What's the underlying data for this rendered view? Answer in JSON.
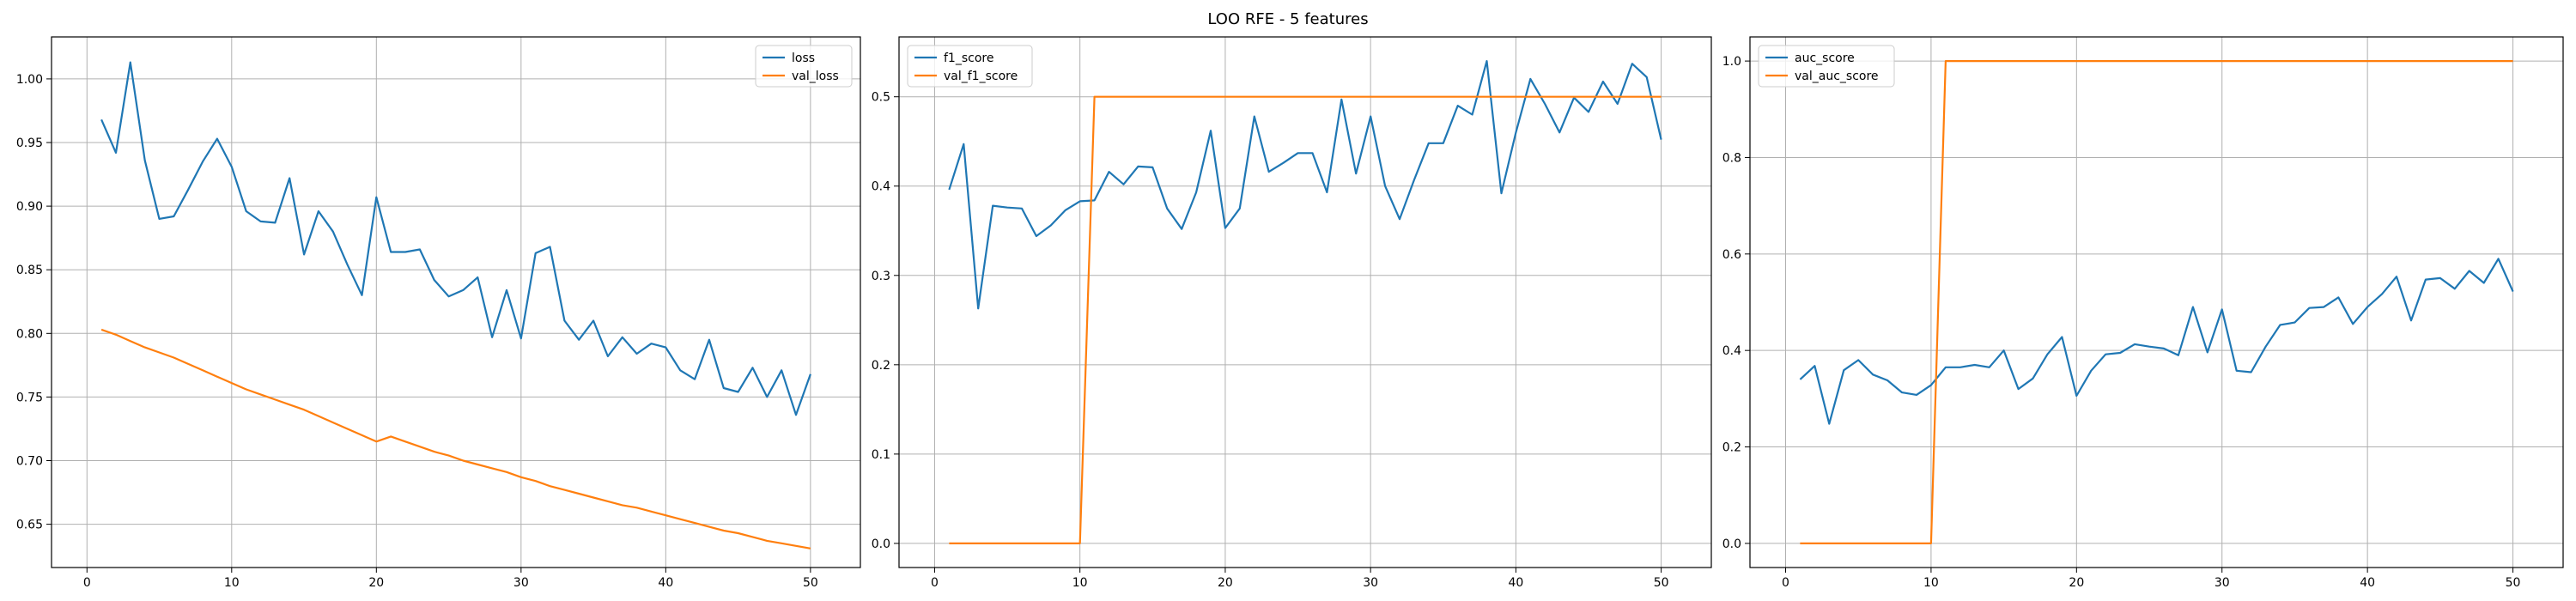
{
  "figure": {
    "title": "LOO RFE - 5 features"
  },
  "chart_data": [
    {
      "type": "line",
      "title": "",
      "xlabel": "",
      "ylabel": "",
      "xlim": [
        -2.45,
        53.45
      ],
      "ylim": [
        0.616,
        1.033
      ],
      "xticks": [
        0,
        10,
        20,
        30,
        40,
        50
      ],
      "yticks": [
        0.65,
        0.7,
        0.75,
        0.8,
        0.85,
        0.9,
        0.95,
        1.0
      ],
      "ytick_labels": [
        "0.65",
        "0.70",
        "0.75",
        "0.80",
        "0.85",
        "0.90",
        "0.95",
        "1.00"
      ],
      "grid": true,
      "legend_position": "upper right",
      "x": [
        1,
        2,
        3,
        4,
        5,
        6,
        7,
        8,
        9,
        10,
        11,
        12,
        13,
        14,
        15,
        16,
        17,
        18,
        19,
        20,
        21,
        22,
        23,
        24,
        25,
        26,
        27,
        28,
        29,
        30,
        31,
        32,
        33,
        34,
        35,
        36,
        37,
        38,
        39,
        40,
        41,
        42,
        43,
        44,
        45,
        46,
        47,
        48,
        49,
        50
      ],
      "series": [
        {
          "name": "loss",
          "color": "#1f77b4",
          "values": [
            0.968,
            0.942,
            1.013,
            0.936,
            0.89,
            0.892,
            0.913,
            0.935,
            0.953,
            0.931,
            0.896,
            0.888,
            0.887,
            0.922,
            0.862,
            0.896,
            0.88,
            0.854,
            0.83,
            0.907,
            0.864,
            0.864,
            0.866,
            0.842,
            0.829,
            0.834,
            0.844,
            0.797,
            0.834,
            0.796,
            0.863,
            0.868,
            0.81,
            0.795,
            0.81,
            0.782,
            0.797,
            0.784,
            0.792,
            0.789,
            0.771,
            0.764,
            0.795,
            0.757,
            0.754,
            0.773,
            0.75,
            0.771,
            0.736,
            0.768
          ]
        },
        {
          "name": "val_loss",
          "color": "#ff7f0e",
          "values": [
            0.803,
            0.799,
            0.794,
            0.789,
            0.785,
            0.781,
            0.776,
            0.771,
            0.766,
            0.761,
            0.756,
            0.752,
            0.748,
            0.744,
            0.74,
            0.735,
            0.73,
            0.725,
            0.72,
            0.715,
            0.719,
            0.715,
            0.711,
            0.707,
            0.704,
            0.7,
            0.697,
            0.694,
            0.691,
            0.687,
            0.684,
            0.68,
            0.677,
            0.674,
            0.671,
            0.668,
            0.665,
            0.663,
            0.66,
            0.657,
            0.654,
            0.651,
            0.648,
            0.645,
            0.643,
            0.64,
            0.637,
            0.635,
            0.633,
            0.631
          ]
        }
      ]
    },
    {
      "type": "line",
      "title": "",
      "xlabel": "",
      "ylabel": "",
      "xlim": [
        -2.45,
        53.45
      ],
      "ylim": [
        -0.027,
        0.567
      ],
      "xticks": [
        0,
        10,
        20,
        30,
        40,
        50
      ],
      "yticks": [
        0.0,
        0.1,
        0.2,
        0.3,
        0.4,
        0.5
      ],
      "ytick_labels": [
        "0.0",
        "0.1",
        "0.2",
        "0.3",
        "0.4",
        "0.5"
      ],
      "grid": true,
      "legend_position": "upper left",
      "x": [
        1,
        2,
        3,
        4,
        5,
        6,
        7,
        8,
        9,
        10,
        11,
        12,
        13,
        14,
        15,
        16,
        17,
        18,
        19,
        20,
        21,
        22,
        23,
        24,
        25,
        26,
        27,
        28,
        29,
        30,
        31,
        32,
        33,
        34,
        35,
        36,
        37,
        38,
        39,
        40,
        41,
        42,
        43,
        44,
        45,
        46,
        47,
        48,
        49,
        50
      ],
      "series": [
        {
          "name": "f1_score",
          "color": "#1f77b4",
          "values": [
            0.396,
            0.447,
            0.263,
            0.378,
            0.376,
            0.375,
            0.344,
            0.356,
            0.373,
            0.383,
            0.384,
            0.416,
            0.402,
            0.422,
            0.421,
            0.375,
            0.352,
            0.393,
            0.462,
            0.353,
            0.375,
            0.478,
            0.416,
            0.426,
            0.437,
            0.437,
            0.393,
            0.497,
            0.414,
            0.478,
            0.4,
            0.363,
            0.407,
            0.448,
            0.448,
            0.49,
            0.48,
            0.54,
            0.392,
            0.46,
            0.52,
            0.492,
            0.46,
            0.499,
            0.483,
            0.517,
            0.492,
            0.537,
            0.522,
            0.452
          ]
        },
        {
          "name": "val_f1_score",
          "color": "#ff7f0e",
          "values": [
            0,
            0,
            0,
            0,
            0,
            0,
            0,
            0,
            0,
            0,
            0.5,
            0.5,
            0.5,
            0.5,
            0.5,
            0.5,
            0.5,
            0.5,
            0.5,
            0.5,
            0.5,
            0.5,
            0.5,
            0.5,
            0.5,
            0.5,
            0.5,
            0.5,
            0.5,
            0.5,
            0.5,
            0.5,
            0.5,
            0.5,
            0.5,
            0.5,
            0.5,
            0.5,
            0.5,
            0.5,
            0.5,
            0.5,
            0.5,
            0.5,
            0.5,
            0.5,
            0.5,
            0.5,
            0.5,
            0.5
          ]
        }
      ]
    },
    {
      "type": "line",
      "title": "",
      "xlabel": "",
      "ylabel": "",
      "xlim": [
        -2.45,
        53.45
      ],
      "ylim": [
        -0.05,
        1.05
      ],
      "xticks": [
        0,
        10,
        20,
        30,
        40,
        50
      ],
      "yticks": [
        0.0,
        0.2,
        0.4,
        0.6,
        0.8,
        1.0
      ],
      "ytick_labels": [
        "0.0",
        "0.2",
        "0.4",
        "0.6",
        "0.8",
        "1.0"
      ],
      "grid": true,
      "legend_position": "upper left",
      "x": [
        1,
        2,
        3,
        4,
        5,
        6,
        7,
        8,
        9,
        10,
        11,
        12,
        13,
        14,
        15,
        16,
        17,
        18,
        19,
        20,
        21,
        22,
        23,
        24,
        25,
        26,
        27,
        28,
        29,
        30,
        31,
        32,
        33,
        34,
        35,
        36,
        37,
        38,
        39,
        40,
        41,
        42,
        43,
        44,
        45,
        46,
        47,
        48,
        49,
        50
      ],
      "series": [
        {
          "name": "auc_score",
          "color": "#1f77b4",
          "values": [
            0.34,
            0.368,
            0.248,
            0.359,
            0.38,
            0.35,
            0.338,
            0.313,
            0.308,
            0.328,
            0.365,
            0.365,
            0.37,
            0.365,
            0.4,
            0.32,
            0.342,
            0.392,
            0.428,
            0.306,
            0.358,
            0.392,
            0.395,
            0.413,
            0.408,
            0.404,
            0.39,
            0.49,
            0.396,
            0.485,
            0.358,
            0.355,
            0.408,
            0.453,
            0.458,
            0.488,
            0.49,
            0.51,
            0.455,
            0.49,
            0.517,
            0.553,
            0.462,
            0.547,
            0.55,
            0.528,
            0.565,
            0.54,
            0.59,
            0.522
          ]
        },
        {
          "name": "val_auc_score",
          "color": "#ff7f0e",
          "values": [
            0,
            0,
            0,
            0,
            0,
            0,
            0,
            0,
            0,
            0,
            1,
            1,
            1,
            1,
            1,
            1,
            1,
            1,
            1,
            1,
            1,
            1,
            1,
            1,
            1,
            1,
            1,
            1,
            1,
            1,
            1,
            1,
            1,
            1,
            1,
            1,
            1,
            1,
            1,
            1,
            1,
            1,
            1,
            1,
            1,
            1,
            1,
            1,
            1,
            1
          ]
        }
      ]
    }
  ]
}
